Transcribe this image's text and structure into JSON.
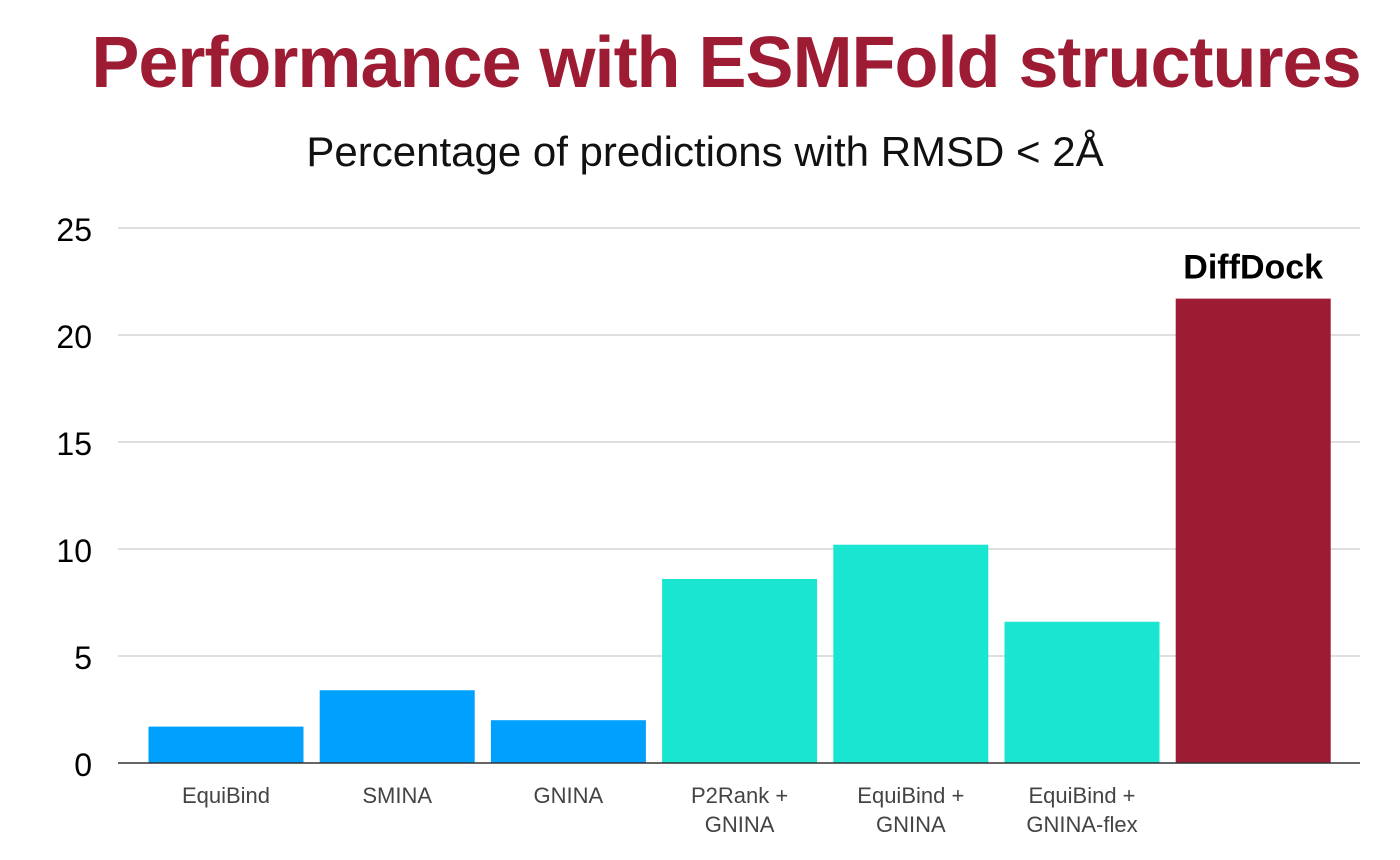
{
  "colors": {
    "title": "#9e1c33",
    "baseline_blue": "#00a0ff",
    "pocket_teal": "#1ae5d1",
    "diffdock_red": "#9e1c33",
    "grid": "#cccccc",
    "axis": "#333333",
    "tick_label": "#000000",
    "category_label": "#444444"
  },
  "chart_data": {
    "type": "bar",
    "title": "Performance with ESMFold structures",
    "subtitle": "Percentage of predictions with RMSD < 2Å",
    "xlabel": "",
    "ylabel": "",
    "ylim": [
      0,
      25
    ],
    "yticks": [
      0,
      5,
      10,
      15,
      20,
      25
    ],
    "grid": true,
    "categories": [
      [
        "EquiBind"
      ],
      [
        "SMINA"
      ],
      [
        "GNINA"
      ],
      [
        "P2Rank +",
        "GNINA"
      ],
      [
        "EquiBind +",
        "GNINA"
      ],
      [
        "EquiBind +",
        "GNINA-flex"
      ],
      [
        ""
      ]
    ],
    "values": [
      1.7,
      3.4,
      2.0,
      8.6,
      10.2,
      6.6,
      21.7
    ],
    "bar_color_keys": [
      "baseline_blue",
      "baseline_blue",
      "baseline_blue",
      "pocket_teal",
      "pocket_teal",
      "pocket_teal",
      "diffdock_red"
    ],
    "annotations": [
      {
        "bar_index": 6,
        "text": "DiffDock"
      }
    ]
  }
}
